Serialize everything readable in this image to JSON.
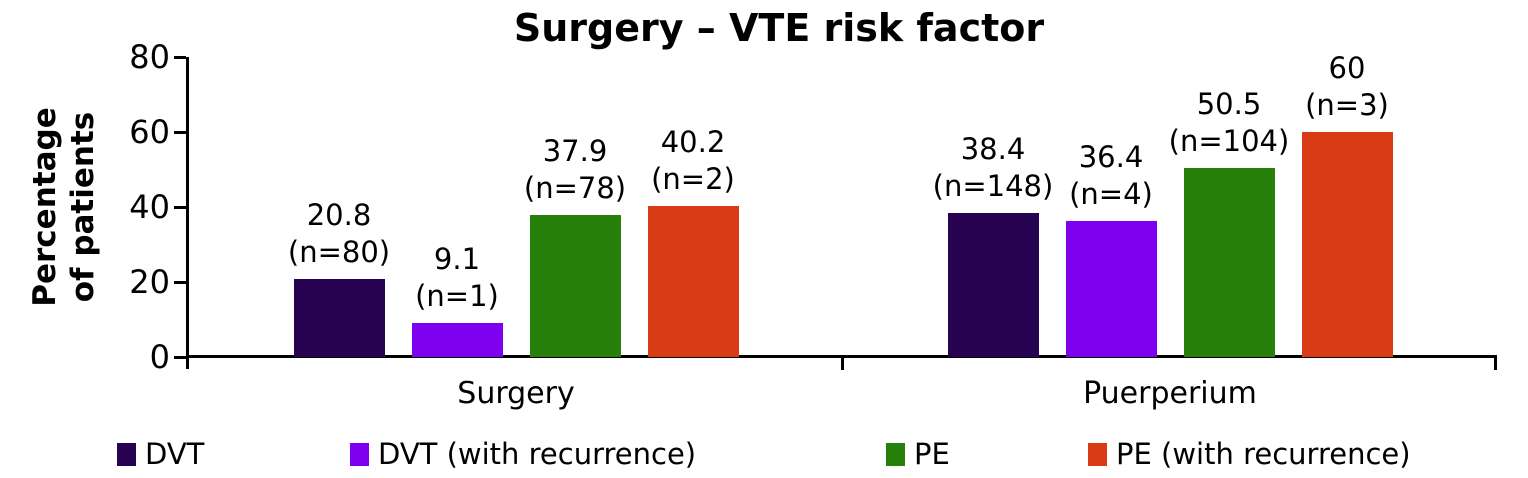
{
  "chart_data": {
    "type": "bar",
    "title": "Surgery – VTE risk factor",
    "ylabel": "Percentage of patients",
    "ylabel_lines": [
      "Percentage",
      "of patients"
    ],
    "xlabel": "",
    "ylim": [
      0,
      80
    ],
    "yticks": [
      0,
      20,
      40,
      60,
      80
    ],
    "grid": false,
    "legend_position": "bottom",
    "categories": [
      "Surgery",
      "Puerperium"
    ],
    "series": [
      {
        "name": "DVT",
        "color": "#270352",
        "values": [
          20.8,
          38.4
        ],
        "n_counts": [
          80,
          148
        ],
        "value_labels": [
          "20.8",
          "38.4"
        ],
        "n_labels": [
          "(n=80)",
          "(n=148)"
        ]
      },
      {
        "name": "DVT (with recurrence)",
        "color": "#7F00EF",
        "values": [
          9.1,
          36.4
        ],
        "n_counts": [
          1,
          4
        ],
        "value_labels": [
          "9.1",
          "36.4"
        ],
        "n_labels": [
          "(n=1)",
          "(n=4)"
        ]
      },
      {
        "name": "PE",
        "color": "#26800A",
        "values": [
          37.9,
          50.5
        ],
        "n_counts": [
          78,
          104
        ],
        "value_labels": [
          "37.9",
          "50.5"
        ],
        "n_labels": [
          "(n=78)",
          "(n=104)"
        ]
      },
      {
        "name": "PE (with recurrence)",
        "color": "#D93C15",
        "values": [
          40.2,
          60
        ],
        "n_counts": [
          2,
          3
        ],
        "value_labels": [
          "40.2",
          "60"
        ],
        "n_labels": [
          "(n=2)",
          "(n=3)"
        ]
      }
    ]
  }
}
